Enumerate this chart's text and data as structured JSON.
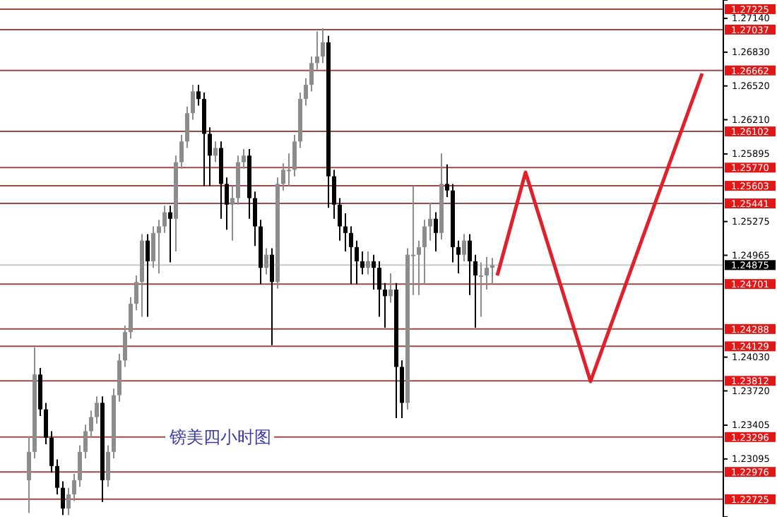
{
  "chart_data": {
    "type": "candlestick",
    "title": "镑美四小时图",
    "tick_labels": "y",
    "grid": false,
    "categories": [
      null,
      null,
      null,
      null,
      null,
      null,
      null,
      null,
      null,
      null,
      null,
      null,
      null,
      null,
      null,
      null,
      null,
      null,
      null,
      null,
      null,
      null,
      null,
      null,
      null,
      null,
      null,
      null,
      null,
      null,
      null,
      null,
      null,
      null,
      null,
      null,
      null,
      null,
      null,
      null,
      null,
      null,
      null,
      null,
      null,
      null,
      null,
      null,
      null,
      null,
      null,
      null,
      null,
      null,
      null,
      null,
      null,
      null,
      null,
      null,
      null,
      null,
      null,
      null,
      null,
      null,
      null,
      null,
      null,
      null,
      null,
      null,
      null,
      null,
      null,
      null,
      null,
      null,
      null,
      null,
      null,
      null,
      null,
      null,
      null,
      null,
      null,
      null,
      null,
      null,
      null,
      null,
      null,
      null,
      null,
      null,
      null,
      null,
      null,
      null,
      null,
      null,
      null,
      null,
      null,
      null,
      null,
      null,
      null,
      null,
      null,
      null,
      null,
      null,
      null,
      null,
      null,
      null,
      null,
      null,
      null,
      null,
      null
    ],
    "ylim": [
      1.22562,
      1.27309
    ],
    "yticks": [
      {
        "value": 1.2714,
        "label": "1.27140"
      },
      {
        "value": 1.2683,
        "label": "1.26830"
      },
      {
        "value": 1.2652,
        "label": "1.26520"
      },
      {
        "value": 1.2621,
        "label": "1.26210"
      },
      1.25895,
      1.25275,
      1.24965,
      {
        "value": 1.2403,
        "label": "1.24030"
      },
      {
        "value": 1.2372,
        "label": "1.23720"
      },
      1.23405,
      1.23095
    ],
    "ref_lines": [
      {
        "axis": "y",
        "value": 1.27225,
        "label": "1.27225",
        "color": "#a04848"
      },
      {
        "axis": "y",
        "value": 1.27037,
        "label": "1.27037",
        "color": "#a04848"
      },
      {
        "axis": "y",
        "value": 1.26662,
        "label": "1.26662",
        "color": "#a04848"
      },
      {
        "axis": "y",
        "value": 1.26102,
        "label": "1.26102",
        "color": "#a04848"
      },
      {
        "axis": "y",
        "value": 1.2577,
        "label": "1.25770",
        "color": "#a04848"
      },
      {
        "axis": "y",
        "value": 1.25603,
        "label": "1.25603",
        "color": "#a04848"
      },
      {
        "axis": "y",
        "value": 1.25441,
        "label": "1.25441",
        "color": "#a04848"
      },
      {
        "axis": "y",
        "value": 1.24875,
        "label": "1.24875",
        "color": "#c8c8c8"
      },
      {
        "axis": "y",
        "value": 1.24701,
        "label": "1.24701",
        "color": "#a04848"
      },
      {
        "axis": "y",
        "value": 1.24288,
        "label": "1.24288",
        "color": "#a04848"
      },
      {
        "axis": "y",
        "value": 1.24129,
        "label": "1.24129",
        "color": "#a04848"
      },
      {
        "axis": "y",
        "value": 1.23812,
        "label": "1.23812",
        "color": "#a04848"
      },
      {
        "axis": "y",
        "value": 1.23296,
        "label": "1.23296",
        "color": "#a04848"
      },
      {
        "axis": "y",
        "value": 1.22976,
        "label": "1.22976",
        "color": "#a04848"
      },
      {
        "axis": "y",
        "value": 1.22725,
        "label": "1.22725",
        "color": "#a04848"
      }
    ],
    "series": [
      {
        "type": "candlestick",
        "colors": [
          "#8c8c8c",
          "#8c8c8c",
          "#000000",
          "#000000",
          "#000000",
          "#000000",
          "#000000",
          "#8c8c8c",
          "#8c8c8c",
          "#8c8c8c",
          "#8c8c8c",
          "#8c8c8c",
          "#8c8c8c",
          "#000000",
          "#8c8c8c",
          "#8c8c8c",
          "#8c8c8c",
          "#8c8c8c",
          "#8c8c8c",
          "#8c8c8c",
          "#8c8c8c",
          "#000000",
          "#8c8c8c",
          "#8c8c8c",
          "#8c8c8c",
          "#000000",
          "#8c8c8c",
          "#8c8c8c",
          "#8c8c8c",
          "#8c8c8c",
          "#000000",
          "#000000",
          "#000000",
          "#8c8c8c",
          "#000000",
          "#000000",
          "#8c8c8c",
          "#8c8c8c",
          "#8c8c8c",
          "#000000",
          "#000000",
          "#000000",
          "#8c8c8c",
          "#000000",
          "#8c8c8c",
          "#8c8c8c",
          "#8c8c8c",
          "#8c8c8c",
          "#8c8c8c",
          "#8c8c8c",
          "#8c8c8c",
          "#8c8c8c",
          "#8c8c8c",
          "#000000",
          "#000000",
          "#000000",
          "#000000",
          "#000000",
          "#000000",
          "#000000",
          "#8c8c8c",
          "#000000",
          "#000000",
          "#000000",
          "#8c8c8c",
          "#000000",
          "#000000",
          "#8c8c8c",
          "#8c8c8c",
          "#8c8c8c",
          "#8c8c8c",
          "#8c8c8c",
          "#000000",
          "#8c8c8c",
          "#000000",
          "#000000",
          "#000000",
          "#8c8c8c",
          "#000000",
          "#000000",
          "#8c8c8c",
          "#8c8c8c",
          "#8c8c8c",
          null,
          null,
          null,
          null,
          null,
          null,
          null,
          null,
          null,
          null,
          null,
          null,
          null,
          null,
          null,
          null,
          null,
          null,
          null,
          null,
          null,
          null,
          null,
          null,
          null,
          null,
          null,
          null,
          null,
          null,
          null,
          null,
          null,
          null,
          null,
          null,
          null,
          null,
          null,
          null
        ],
        "ohlc": [
          [
            1.229,
            1.233,
            1.226,
            1.2316
          ],
          [
            1.2316,
            1.2412,
            1.231,
            1.2387
          ],
          [
            1.2387,
            1.2393,
            1.2349,
            1.2355
          ],
          [
            1.2355,
            1.2361,
            1.2323,
            1.2329
          ],
          [
            1.2329,
            1.2335,
            1.2297,
            1.2303
          ],
          [
            1.2303,
            1.2309,
            1.2277,
            1.2283
          ],
          [
            1.2283,
            1.2289,
            1.2258,
            1.2264
          ],
          [
            1.2264,
            1.2283,
            1.2258,
            1.2277
          ],
          [
            1.2277,
            1.2296,
            1.2271,
            1.229
          ],
          [
            1.229,
            1.2322,
            1.2284,
            1.2316
          ],
          [
            1.2316,
            1.2341,
            1.231,
            1.2335
          ],
          [
            1.2335,
            1.2354,
            1.2329,
            1.2348
          ],
          [
            1.2348,
            1.2367,
            1.2342,
            1.2361
          ],
          [
            1.2361,
            1.2367,
            1.227,
            1.229
          ],
          [
            1.229,
            1.2322,
            1.2284,
            1.2316
          ],
          [
            1.2316,
            1.2374,
            1.231,
            1.2368
          ],
          [
            1.2368,
            1.2406,
            1.2362,
            1.24
          ],
          [
            1.24,
            1.2432,
            1.2394,
            1.2426
          ],
          [
            1.2426,
            1.2458,
            1.242,
            1.2452
          ],
          [
            1.2452,
            1.2478,
            1.2446,
            1.2472
          ],
          [
            1.2472,
            1.2516,
            1.244,
            1.251
          ],
          [
            1.251,
            1.2516,
            1.244,
            1.2491
          ],
          [
            1.2491,
            1.2523,
            1.2485,
            1.2517
          ],
          [
            1.2517,
            1.2529,
            1.248,
            1.2523
          ],
          [
            1.2523,
            1.2542,
            1.2517,
            1.2536
          ],
          [
            1.2536,
            1.2542,
            1.249,
            1.253
          ],
          [
            1.253,
            1.2588,
            1.25,
            1.2582
          ],
          [
            1.2582,
            1.2607,
            1.2576,
            1.2601
          ],
          [
            1.2601,
            1.2633,
            1.2595,
            1.2627
          ],
          [
            1.2627,
            1.2653,
            1.2621,
            1.2647
          ],
          [
            1.2647,
            1.2653,
            1.2634,
            1.264
          ],
          [
            1.264,
            1.2646,
            1.256,
            1.2608
          ],
          [
            1.2608,
            1.2614,
            1.256,
            1.2588
          ],
          [
            1.2588,
            1.2601,
            1.2582,
            1.2595
          ],
          [
            1.2595,
            1.2601,
            1.253,
            1.2562
          ],
          [
            1.2562,
            1.2568,
            1.252,
            1.2543
          ],
          [
            1.2543,
            1.256,
            1.251,
            1.2549
          ],
          [
            1.2549,
            1.2588,
            1.2543,
            1.2582
          ],
          [
            1.2582,
            1.2594,
            1.2576,
            1.2588
          ],
          [
            1.2588,
            1.2594,
            1.253,
            1.2549
          ],
          [
            1.2549,
            1.2555,
            1.2505,
            1.2523
          ],
          [
            1.2523,
            1.2529,
            1.247,
            1.2485
          ],
          [
            1.2485,
            1.2503,
            1.2479,
            1.2497
          ],
          [
            1.2497,
            1.2503,
            1.2414,
            1.2472
          ],
          [
            1.2472,
            1.2568,
            1.2466,
            1.2562
          ],
          [
            1.2562,
            1.2581,
            1.2556,
            1.2575
          ],
          [
            1.2575,
            1.259,
            1.256,
            1.2575
          ],
          [
            1.2575,
            1.2607,
            1.2569,
            1.2601
          ],
          [
            1.2601,
            1.2646,
            1.2595,
            1.264
          ],
          [
            1.264,
            1.2659,
            1.2634,
            1.2653
          ],
          [
            1.2653,
            1.2679,
            1.2647,
            1.2673
          ],
          [
            1.2673,
            1.2702,
            1.2667,
            1.2679
          ],
          [
            1.2679,
            1.2705,
            1.2673,
            1.2692
          ],
          [
            1.2692,
            1.2698,
            1.254,
            1.2569
          ],
          [
            1.2569,
            1.2575,
            1.253,
            1.2543
          ],
          [
            1.2543,
            1.2549,
            1.251,
            1.2523
          ],
          [
            1.2523,
            1.2535,
            1.25,
            1.2517
          ],
          [
            1.2517,
            1.2523,
            1.247,
            1.2504
          ],
          [
            1.2504,
            1.251,
            1.247,
            1.2491
          ],
          [
            1.2491,
            1.25,
            1.2479,
            1.2485
          ],
          [
            1.2485,
            1.25,
            1.2479,
            1.2491
          ],
          [
            1.2491,
            1.2497,
            1.2465,
            1.2485
          ],
          [
            1.2485,
            1.2491,
            1.244,
            1.2465
          ],
          [
            1.2465,
            1.2471,
            1.243,
            1.2459
          ],
          [
            1.2459,
            1.248,
            1.2453,
            1.2465
          ],
          [
            1.2465,
            1.2471,
            1.2347,
            1.2394
          ],
          [
            1.2394,
            1.24,
            1.2347,
            1.2361
          ],
          [
            1.2361,
            1.2503,
            1.2355,
            1.2497
          ],
          [
            1.2497,
            1.256,
            1.246,
            1.2497
          ],
          [
            1.2497,
            1.251,
            1.246,
            1.2504
          ],
          [
            1.2504,
            1.2529,
            1.247,
            1.2523
          ],
          [
            1.2523,
            1.2545,
            1.251,
            1.253
          ],
          [
            1.253,
            1.2536,
            1.25,
            1.2517
          ],
          [
            1.2517,
            1.259,
            1.2511,
            1.2562
          ],
          [
            1.2562,
            1.258,
            1.255,
            1.2556
          ],
          [
            1.2556,
            1.2562,
            1.249,
            1.2504
          ],
          [
            1.2504,
            1.251,
            1.248,
            1.2497
          ],
          [
            1.2497,
            1.2516,
            1.2491,
            1.251
          ],
          [
            1.251,
            1.2516,
            1.246,
            1.2491
          ],
          [
            1.2491,
            1.2497,
            1.243,
            1.2478
          ],
          [
            1.2478,
            1.249,
            1.244,
            1.2478
          ],
          [
            1.2478,
            1.2495,
            1.2465,
            1.2485
          ],
          [
            1.2485,
            1.2494,
            1.247,
            1.24875
          ],
          null,
          null,
          null,
          null,
          null,
          null,
          null,
          null,
          null,
          null,
          null,
          null,
          null,
          null,
          null,
          null,
          null,
          null,
          null,
          null,
          null,
          null,
          null,
          null,
          null,
          null,
          null,
          null,
          null,
          null,
          null,
          null,
          null,
          null,
          null,
          null,
          null,
          null,
          null,
          null
        ]
      }
    ]
  }
}
